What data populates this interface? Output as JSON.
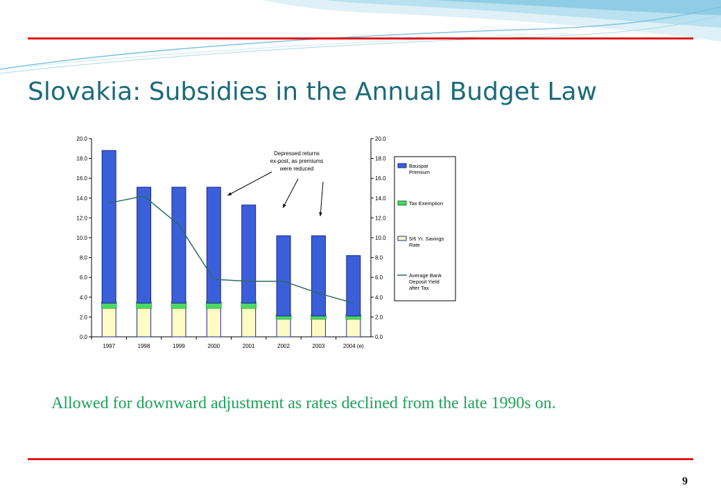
{
  "slide": {
    "title": "Slovakia: Subsidies in the Annual Budget Law",
    "caption": "Allowed for downward adjustment as rates declined from the late 1990s on.",
    "page_number": "9"
  },
  "colors": {
    "title": "#1b6a79",
    "caption": "#1fa05a",
    "rule": "#e01818",
    "bar": "#3b5fd9",
    "base": "#fffbc4",
    "tax": "#4cd964",
    "line": "#2b6b64"
  },
  "chart_data": {
    "type": "bar",
    "categories": [
      "1997",
      "1998",
      "1999",
      "2000",
      "2001",
      "2002",
      "2003",
      "2004 (e)"
    ],
    "series": [
      {
        "name": "Bauspar Premium",
        "kind": "stacked-bar",
        "values": [
          15.4,
          11.7,
          11.7,
          11.7,
          9.9,
          8.1,
          8.1,
          6.1
        ]
      },
      {
        "name": "Tax Exemption",
        "kind": "stacked-bar",
        "values": [
          0.4,
          0.4,
          0.4,
          0.4,
          0.4,
          0.2,
          0.2,
          0.2
        ]
      },
      {
        "name": "5/6 Yr. Savings Rate",
        "kind": "stacked-bar",
        "values": [
          3.0,
          3.0,
          3.0,
          3.0,
          3.0,
          1.9,
          1.9,
          1.9
        ]
      },
      {
        "name": "Average Bank Deposit Yield after Tax",
        "kind": "line",
        "values": [
          13.5,
          14.2,
          11.3,
          5.8,
          5.6,
          5.6,
          4.4,
          3.4
        ]
      }
    ],
    "ylim": [
      0,
      20
    ],
    "yticks": [
      "0.0",
      "2.0",
      "4.0",
      "6.0",
      "8.0",
      "10.0",
      "12.0",
      "14.0",
      "16.0",
      "18.0",
      "20.0"
    ],
    "y2ticks": [
      "0.0",
      "2.0",
      "4.0",
      "6.0",
      "8.0",
      "10.0",
      "12.0",
      "14.0",
      "16.0",
      "18.0",
      "20.0"
    ],
    "annotation": [
      "Depressed returns",
      "ex-post, as premiums",
      "were reduced"
    ],
    "legend_position": "right"
  }
}
